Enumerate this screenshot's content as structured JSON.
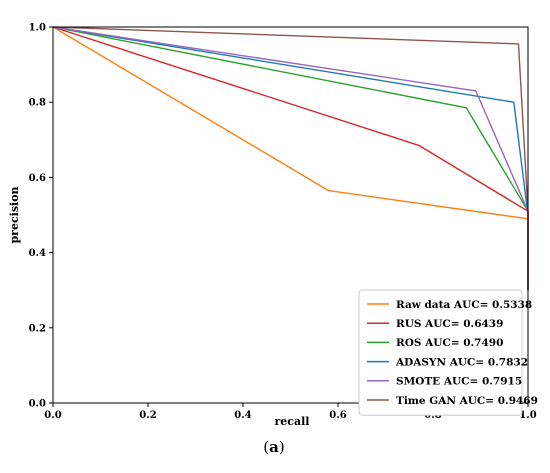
{
  "chart_data": {
    "type": "line",
    "xlabel": "recall",
    "ylabel": "precision",
    "xlim": [
      0.0,
      1.0
    ],
    "ylim": [
      0.0,
      1.0
    ],
    "x_ticks": [
      "0.0",
      "0.2",
      "0.4",
      "0.6",
      "0.8",
      "1.0"
    ],
    "y_ticks": [
      "0.0",
      "0.2",
      "0.4",
      "0.6",
      "0.8",
      "1.0"
    ],
    "grid": false,
    "legend_position": "lower-right",
    "series": [
      {
        "name": "Raw data AUC= 0.5338",
        "color": "#ff7f0e",
        "points": [
          [
            0.0,
            1.0
          ],
          [
            0.58,
            0.565
          ],
          [
            1.0,
            0.49
          ],
          [
            1.0,
            0.3
          ]
        ]
      },
      {
        "name": "RUS AUC= 0.6439",
        "color": "#d62728",
        "points": [
          [
            0.0,
            1.0
          ],
          [
            0.77,
            0.685
          ],
          [
            1.0,
            0.51
          ],
          [
            1.0,
            0.3
          ]
        ]
      },
      {
        "name": "ROS AUC= 0.7490",
        "color": "#2ca02c",
        "points": [
          [
            0.0,
            1.0
          ],
          [
            0.87,
            0.785
          ],
          [
            1.0,
            0.51
          ],
          [
            1.0,
            0.3
          ]
        ]
      },
      {
        "name": "ADASYN AUC= 0.7832",
        "color": "#1f77b4",
        "points": [
          [
            0.0,
            1.0
          ],
          [
            0.97,
            0.8
          ],
          [
            1.0,
            0.5
          ],
          [
            1.0,
            0.3
          ]
        ]
      },
      {
        "name": "SMOTE AUC= 0.7915",
        "color": "#9467bd",
        "points": [
          [
            0.0,
            1.0
          ],
          [
            0.89,
            0.83
          ],
          [
            1.0,
            0.51
          ],
          [
            1.0,
            0.3
          ]
        ]
      },
      {
        "name": "Time GAN AUC= 0.9469",
        "color": "#8c564b",
        "points": [
          [
            0.0,
            1.0
          ],
          [
            0.98,
            0.955
          ],
          [
            1.0,
            0.51
          ],
          [
            1.0,
            0.3
          ]
        ]
      }
    ]
  },
  "caption": {
    "open": "(",
    "letter": "a",
    "close": ")"
  }
}
